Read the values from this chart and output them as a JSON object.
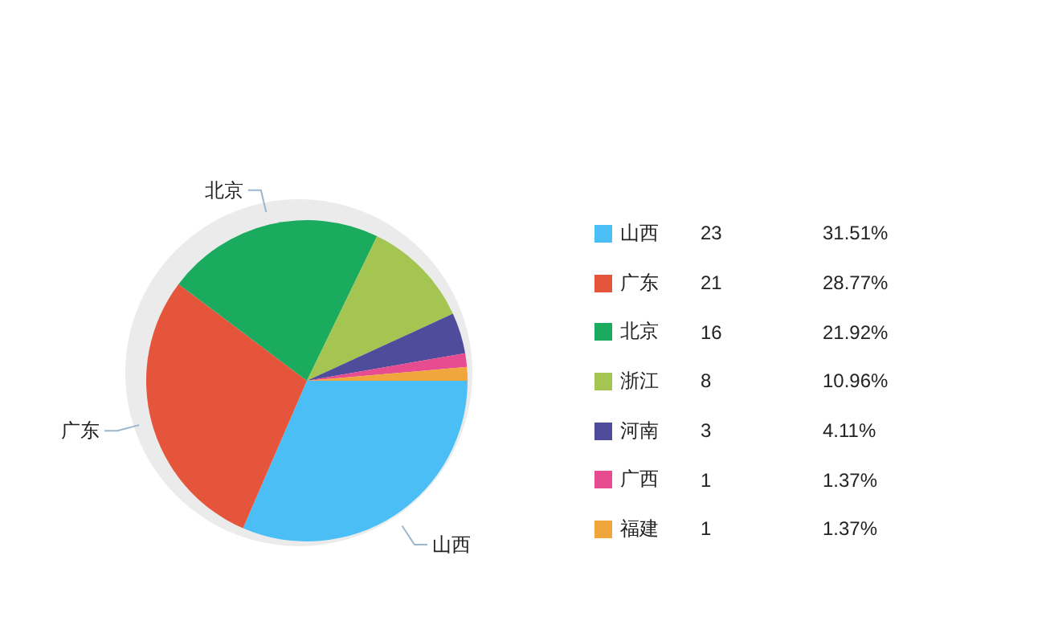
{
  "chart_data": {
    "type": "pie",
    "categories": [
      "山西",
      "广东",
      "北京",
      "浙江",
      "河南",
      "广西",
      "福建"
    ],
    "values": [
      23,
      21,
      16,
      8,
      3,
      1,
      1
    ],
    "colors": [
      "#4bbff5",
      "#e5553b",
      "#1aab5e",
      "#a5c552",
      "#4e4c9b",
      "#e64c8f",
      "#f0a63c"
    ],
    "data_labels": true,
    "legend": "right",
    "annotations": [
      {
        "text": "山西",
        "x": "山西"
      },
      {
        "text": "广东",
        "x": "广东"
      },
      {
        "text": "北京",
        "x": "北京"
      },
      "31.51%",
      "28.77%",
      "21.92%",
      "10.96%",
      "4.11%",
      "1.37%",
      "1.37%"
    ]
  }
}
